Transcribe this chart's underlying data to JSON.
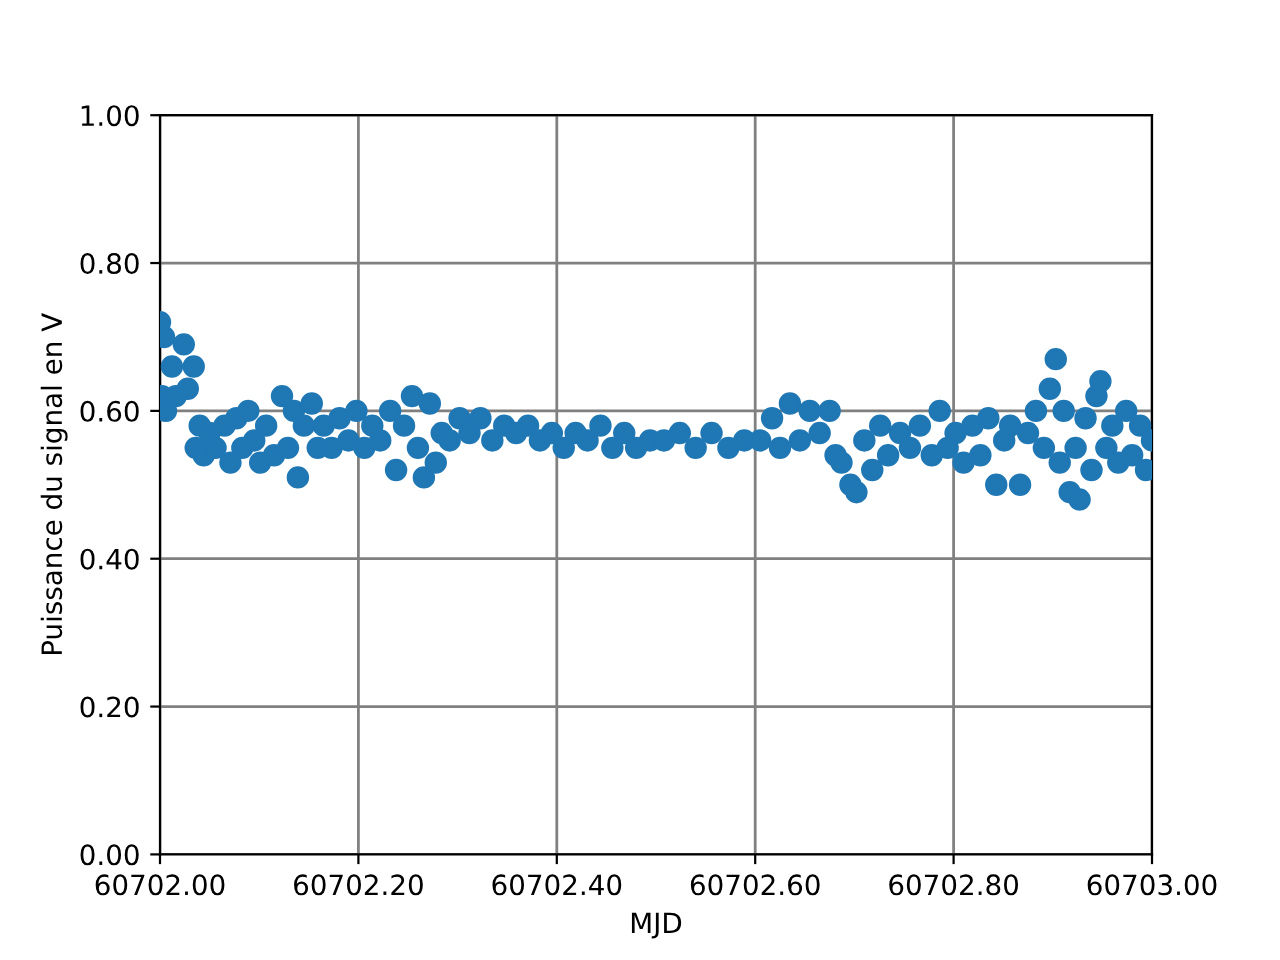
{
  "chart_data": {
    "type": "scatter",
    "xlabel": "MJD",
    "ylabel": "Puissance du signal en V",
    "xlim": [
      60702.0,
      60703.0
    ],
    "xticks": [
      {
        "value": 60702.0,
        "label": "60702.00"
      },
      {
        "value": 60702.2,
        "label": "60702.20"
      },
      {
        "value": 60702.4,
        "label": "60702.40"
      },
      {
        "value": 60702.6,
        "label": "60702.60"
      },
      {
        "value": 60702.8,
        "label": "60702.80"
      },
      {
        "value": 60703.0,
        "label": "60703.00"
      }
    ],
    "ylim": [
      0,
      1
    ],
    "yticks": [
      {
        "value": 0,
        "label": "0.00"
      },
      {
        "value": 0.2,
        "label": "0.20"
      },
      {
        "value": 0.4,
        "label": "0.40"
      },
      {
        "value": 0.6,
        "label": "0.60"
      },
      {
        "value": 0.8,
        "label": "0.80"
      },
      {
        "value": 1.0,
        "label": "1.00"
      }
    ],
    "grid": true,
    "marker": "circle",
    "series": [
      {
        "color": "#1f77b4",
        "x": [
          60702.0,
          60702.002,
          60702.004,
          60702.006,
          60702.012,
          60702.016,
          60702.024,
          60702.028,
          60702.034,
          60702.036,
          60702.04,
          60702.044,
          60702.05,
          60702.056,
          60702.065,
          60702.071,
          60702.077,
          60702.083,
          60702.089,
          60702.095,
          60702.101,
          60702.107,
          60702.115,
          60702.123,
          60702.129,
          60702.135,
          60702.139,
          60702.145,
          60702.153,
          60702.159,
          60702.165,
          60702.173,
          60702.181,
          60702.19,
          60702.198,
          60702.206,
          60702.214,
          60702.222,
          60702.232,
          60702.238,
          60702.246,
          60702.254,
          60702.26,
          60702.266,
          60702.272,
          60702.278,
          60702.284,
          60702.292,
          60702.302,
          60702.312,
          60702.323,
          60702.335,
          60702.347,
          60702.359,
          60702.371,
          60702.383,
          60702.395,
          60702.407,
          60702.419,
          60702.431,
          60702.444,
          60702.456,
          60702.468,
          60702.48,
          60702.494,
          60702.508,
          60702.524,
          60702.54,
          60702.556,
          60702.573,
          60702.589,
          60702.605,
          60702.617,
          60702.625,
          60702.635,
          60702.645,
          60702.655,
          60702.665,
          60702.675,
          60702.681,
          60702.687,
          60702.696,
          60702.702,
          60702.71,
          60702.718,
          60702.726,
          60702.734,
          60702.746,
          60702.756,
          60702.766,
          60702.778,
          60702.786,
          60702.794,
          60702.802,
          60702.81,
          60702.819,
          60702.827,
          60702.835,
          60702.843,
          60702.851,
          60702.857,
          60702.867,
          60702.875,
          60702.883,
          60702.891,
          60702.897,
          60702.903,
          60702.907,
          60702.911,
          60702.917,
          60702.923,
          60702.927,
          60702.933,
          60702.939,
          60702.944,
          60702.948,
          60702.954,
          60702.96,
          60702.966,
          60702.974,
          60702.98,
          60702.988,
          60702.994,
          60703.0
        ],
        "values": [
          0.72,
          0.62,
          0.7,
          0.6,
          0.66,
          0.62,
          0.69,
          0.63,
          0.66,
          0.55,
          0.58,
          0.54,
          0.57,
          0.55,
          0.58,
          0.53,
          0.59,
          0.55,
          0.6,
          0.56,
          0.53,
          0.58,
          0.54,
          0.62,
          0.55,
          0.6,
          0.51,
          0.58,
          0.61,
          0.55,
          0.58,
          0.55,
          0.59,
          0.56,
          0.6,
          0.55,
          0.58,
          0.56,
          0.6,
          0.52,
          0.58,
          0.62,
          0.55,
          0.51,
          0.61,
          0.53,
          0.57,
          0.56,
          0.59,
          0.57,
          0.59,
          0.56,
          0.58,
          0.57,
          0.58,
          0.56,
          0.57,
          0.55,
          0.57,
          0.56,
          0.58,
          0.55,
          0.57,
          0.55,
          0.56,
          0.56,
          0.57,
          0.55,
          0.57,
          0.55,
          0.56,
          0.56,
          0.59,
          0.55,
          0.61,
          0.56,
          0.6,
          0.57,
          0.6,
          0.54,
          0.53,
          0.5,
          0.49,
          0.56,
          0.52,
          0.58,
          0.54,
          0.57,
          0.55,
          0.58,
          0.54,
          0.6,
          0.55,
          0.57,
          0.53,
          0.58,
          0.54,
          0.59,
          0.5,
          0.56,
          0.58,
          0.5,
          0.57,
          0.6,
          0.55,
          0.63,
          0.67,
          0.53,
          0.6,
          0.49,
          0.55,
          0.48,
          0.59,
          0.52,
          0.62,
          0.64,
          0.55,
          0.58,
          0.53,
          0.6,
          0.54,
          0.58,
          0.52,
          0.56
        ]
      }
    ]
  }
}
